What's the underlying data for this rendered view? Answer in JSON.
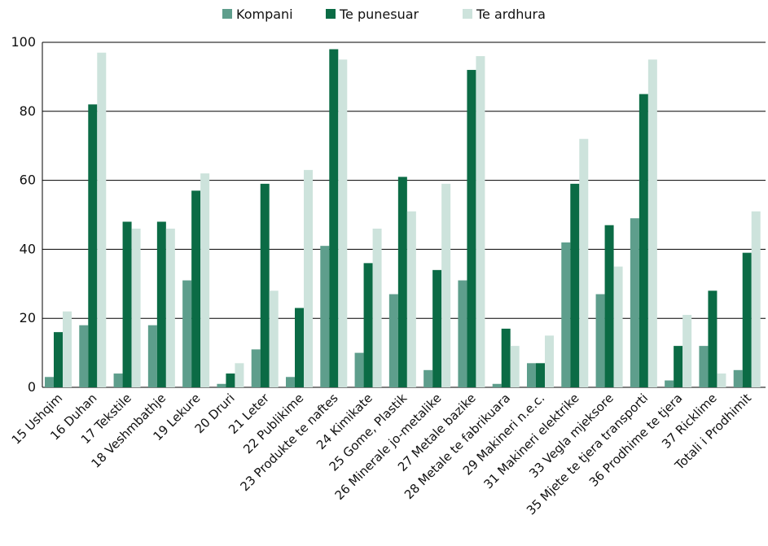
{
  "chart_data": {
    "type": "bar",
    "title": "",
    "xlabel": "",
    "ylabel": "",
    "ylim": [
      0,
      100
    ],
    "yticks": [
      0,
      20,
      40,
      60,
      80,
      100
    ],
    "grid": true,
    "legend_position": "top",
    "categories": [
      "15 Ushqim",
      "16 Duhan",
      "17 Tekstile",
      "18 Veshmbathje",
      "19 Lekure",
      "20 Druri",
      "21 Leter",
      "22 Publikime",
      "23 Produkte te naftes",
      "24 Kimikate",
      "25 Gome, Plastik",
      "26 Minerale jo-metalike",
      "27 Metale bazike",
      "28 Metale te fabrikuara",
      "29 Makineri n.e.c.",
      "31 Makineri elektrike",
      "33 Vegla mjeksore",
      "35 Mjete te tjera transporti",
      "36 Prodhime te tjera",
      "37 Ricklime",
      "Totali i Prodhimit"
    ],
    "series": [
      {
        "name": "Kompani",
        "color": "#5e9e8c",
        "values": [
          3,
          18,
          4,
          18,
          31,
          1,
          11,
          3,
          41,
          10,
          27,
          5,
          31,
          1,
          7,
          42,
          27,
          49,
          2,
          12,
          5
        ]
      },
      {
        "name": "Te punesuar",
        "color": "#0b6b45",
        "values": [
          16,
          82,
          48,
          48,
          57,
          4,
          59,
          23,
          98,
          36,
          61,
          34,
          92,
          17,
          7,
          59,
          47,
          85,
          12,
          28,
          39
        ]
      },
      {
        "name": "Te ardhura",
        "color": "#cde3dc",
        "values": [
          22,
          97,
          46,
          46,
          62,
          7,
          28,
          63,
          95,
          46,
          51,
          59,
          96,
          12,
          15,
          72,
          35,
          95,
          21,
          4,
          51
        ]
      }
    ]
  }
}
